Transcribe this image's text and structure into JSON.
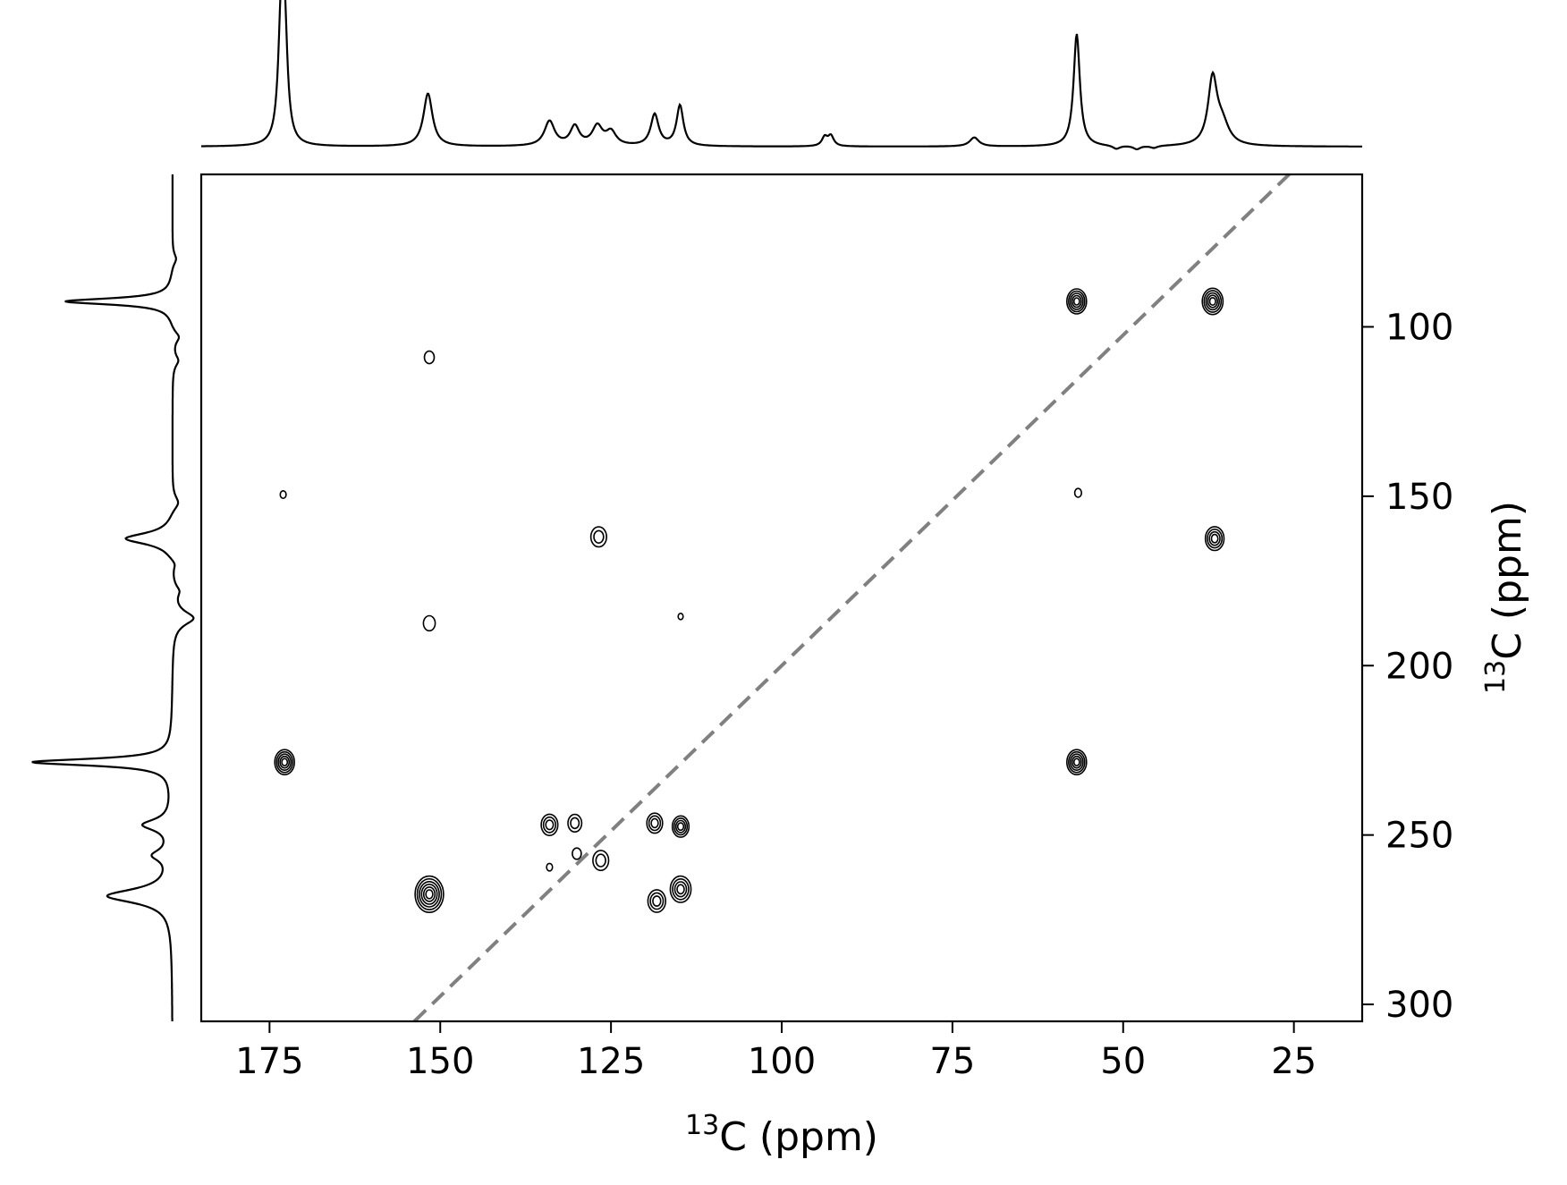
{
  "chart_data": {
    "type": "contour",
    "x_axis": {
      "label_sup": "13",
      "label_text": "C (ppm)",
      "lim": [
        185,
        15
      ],
      "ticks": [
        175,
        150,
        125,
        100,
        75,
        50,
        25
      ],
      "tick_labels": [
        "175",
        "150",
        "125",
        "100",
        "75",
        "50",
        "25"
      ]
    },
    "y_axis": {
      "label_sup": "13",
      "label_text": "C (ppm)",
      "position": "right",
      "lim": [
        55,
        305
      ],
      "ticks": [
        100,
        150,
        200,
        250,
        300
      ],
      "tick_labels": [
        "100",
        "150",
        "200",
        "250",
        "300"
      ]
    },
    "diagonal": {
      "style": "dashed",
      "color": "#808080",
      "points": [
        [
          153.8,
          305
        ],
        [
          25.7,
          55
        ]
      ]
    },
    "top_projection": {
      "baseline_level": 0.0,
      "peaks": [
        {
          "ppm": 173.3,
          "height": 1.0,
          "width": 0.5
        },
        {
          "ppm": 172.8,
          "height": 0.95,
          "width": 0.5
        },
        {
          "ppm": 151.8,
          "height": 0.47,
          "width": 0.8
        },
        {
          "ppm": 134.0,
          "height": 0.22,
          "width": 0.9
        },
        {
          "ppm": 130.3,
          "height": 0.17,
          "width": 0.8
        },
        {
          "ppm": 127.0,
          "height": 0.17,
          "width": 0.9
        },
        {
          "ppm": 125.0,
          "height": 0.12,
          "width": 0.9
        },
        {
          "ppm": 118.6,
          "height": 0.28,
          "width": 0.7
        },
        {
          "ppm": 114.9,
          "height": 0.36,
          "width": 0.6
        },
        {
          "ppm": 93.7,
          "height": 0.08,
          "width": 0.5
        },
        {
          "ppm": 92.8,
          "height": 0.09,
          "width": 0.5
        },
        {
          "ppm": 71.8,
          "height": 0.08,
          "width": 0.8
        },
        {
          "ppm": 56.8,
          "height": 1.0,
          "width": 0.55
        },
        {
          "ppm": 36.9,
          "height": 0.58,
          "width": 0.8
        },
        {
          "ppm": 35.5,
          "height": 0.18,
          "width": 1.2
        }
      ],
      "dips": [
        {
          "ppm": 51.0,
          "depth": 0.03,
          "width": 0.6
        },
        {
          "ppm": 48.0,
          "depth": 0.03,
          "width": 0.6
        },
        {
          "ppm": 45.5,
          "depth": 0.02,
          "width": 0.6
        }
      ]
    },
    "left_projection": {
      "peaks": [
        {
          "ppm": 92.5,
          "height": 0.77,
          "width": 1.1
        },
        {
          "ppm": 162.5,
          "height": 0.34,
          "width": 2.0
        },
        {
          "ppm": 228.5,
          "height": 1.0,
          "width": 1.2
        },
        {
          "ppm": 247.0,
          "height": 0.2,
          "width": 2.0
        },
        {
          "ppm": 256.0,
          "height": 0.12,
          "width": 2.0
        },
        {
          "ppm": 268.0,
          "height": 0.46,
          "width": 2.5
        }
      ],
      "dips": [
        {
          "ppm": 80.0,
          "depth": 0.03,
          "width": 2.0
        },
        {
          "ppm": 103.0,
          "depth": 0.05,
          "width": 2.0
        },
        {
          "ppm": 110.0,
          "depth": 0.04,
          "width": 2.0
        },
        {
          "ppm": 152.0,
          "depth": 0.05,
          "width": 2.5
        },
        {
          "ppm": 170.0,
          "depth": 0.03,
          "width": 2.0
        },
        {
          "ppm": 186.0,
          "depth": 0.15,
          "width": 2.5
        },
        {
          "ppm": 178.0,
          "depth": 0.04,
          "width": 2.0
        }
      ]
    },
    "cross_peaks": [
      {
        "x": 56.8,
        "y": 92.5,
        "levels": 5,
        "size": 1.0
      },
      {
        "x": 36.9,
        "y": 92.5,
        "levels": 5,
        "size": 1.05
      },
      {
        "x": 151.6,
        "y": 109.0,
        "levels": 1,
        "size": 0.5
      },
      {
        "x": 173.0,
        "y": 149.5,
        "levels": 1,
        "size": 0.3
      },
      {
        "x": 56.6,
        "y": 149.0,
        "levels": 1,
        "size": 0.35
      },
      {
        "x": 126.8,
        "y": 162.0,
        "levels": 2,
        "size": 0.8
      },
      {
        "x": 36.6,
        "y": 162.5,
        "levels": 4,
        "size": 0.95
      },
      {
        "x": 151.6,
        "y": 187.5,
        "levels": 1,
        "size": 0.6
      },
      {
        "x": 114.8,
        "y": 185.5,
        "levels": 1,
        "size": 0.25
      },
      {
        "x": 172.8,
        "y": 228.5,
        "levels": 5,
        "size": 1.0
      },
      {
        "x": 56.8,
        "y": 228.5,
        "levels": 5,
        "size": 1.0
      },
      {
        "x": 134.0,
        "y": 247.0,
        "levels": 3,
        "size": 0.85
      },
      {
        "x": 130.3,
        "y": 246.5,
        "levels": 2,
        "size": 0.7
      },
      {
        "x": 118.6,
        "y": 246.5,
        "levels": 3,
        "size": 0.8
      },
      {
        "x": 114.8,
        "y": 247.5,
        "levels": 4,
        "size": 0.85
      },
      {
        "x": 130.0,
        "y": 255.5,
        "levels": 1,
        "size": 0.45
      },
      {
        "x": 126.5,
        "y": 257.5,
        "levels": 2,
        "size": 0.8
      },
      {
        "x": 134.0,
        "y": 259.5,
        "levels": 1,
        "size": 0.3
      },
      {
        "x": 151.6,
        "y": 267.5,
        "levels": 6,
        "size": 1.45
      },
      {
        "x": 118.3,
        "y": 269.5,
        "levels": 3,
        "size": 0.9
      },
      {
        "x": 114.8,
        "y": 266.0,
        "levels": 4,
        "size": 1.05
      }
    ]
  }
}
